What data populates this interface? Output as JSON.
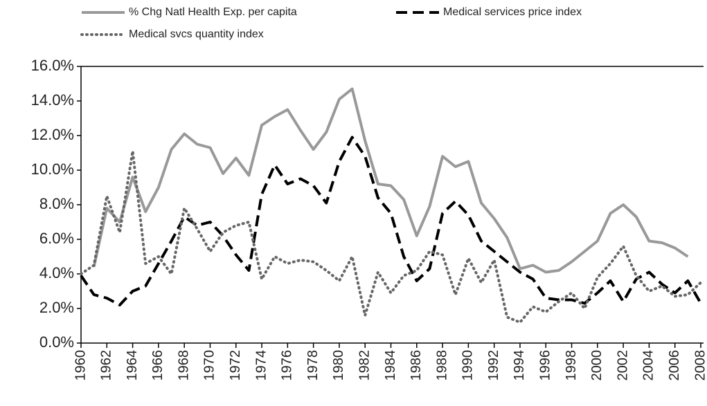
{
  "chart_data": {
    "type": "line",
    "x": [
      1960,
      1961,
      1962,
      1963,
      1964,
      1965,
      1966,
      1967,
      1968,
      1969,
      1970,
      1971,
      1972,
      1973,
      1974,
      1975,
      1976,
      1977,
      1978,
      1979,
      1980,
      1981,
      1982,
      1983,
      1984,
      1985,
      1986,
      1987,
      1988,
      1989,
      1990,
      1991,
      1992,
      1993,
      1994,
      1995,
      1996,
      1997,
      1998,
      1999,
      2000,
      2001,
      2002,
      2003,
      2004,
      2005,
      2006,
      2007,
      2008
    ],
    "xlim": [
      1960,
      2008
    ],
    "xticks": [
      1960,
      1962,
      1964,
      1966,
      1968,
      1970,
      1972,
      1974,
      1976,
      1978,
      1980,
      1982,
      1984,
      1986,
      1988,
      1990,
      1992,
      1994,
      1996,
      1998,
      2000,
      2002,
      2004,
      2006,
      2008
    ],
    "ylim": [
      0,
      16
    ],
    "yticks": [
      {
        "value": 0,
        "label": "0.0%"
      },
      {
        "value": 2,
        "label": "2.0%"
      },
      {
        "value": 4,
        "label": "4.0%"
      },
      {
        "value": 6,
        "label": "6.0%"
      },
      {
        "value": 8,
        "label": "8.0%"
      },
      {
        "value": 10,
        "label": "10.0%"
      },
      {
        "value": 12,
        "label": "12.0%"
      },
      {
        "value": 14,
        "label": "14.0%"
      },
      {
        "value": 16,
        "label": "16.0%"
      }
    ],
    "series": [
      {
        "name": "% Chg Natl Health Exp. per capita",
        "color": "#999999",
        "dash": "solid",
        "values": [
          null,
          4.4,
          7.8,
          7.0,
          9.6,
          7.6,
          9.0,
          11.2,
          12.1,
          11.5,
          11.3,
          9.8,
          10.7,
          9.7,
          12.6,
          13.1,
          13.5,
          12.3,
          11.2,
          12.2,
          14.1,
          14.7,
          11.7,
          9.2,
          9.1,
          8.3,
          6.2,
          7.9,
          10.8,
          10.2,
          10.5,
          8.1,
          7.2,
          6.1,
          4.3,
          4.5,
          4.1,
          4.2,
          4.7,
          5.3,
          5.9,
          7.5,
          8.0,
          7.3,
          5.9,
          5.8,
          5.5,
          5.0,
          null
        ]
      },
      {
        "name": "Medical services price index",
        "color": "#000000",
        "dash": "dashed",
        "values": [
          3.9,
          2.8,
          2.6,
          2.2,
          3.0,
          3.3,
          4.6,
          5.9,
          7.3,
          6.8,
          7.0,
          6.2,
          5.1,
          4.2,
          8.6,
          10.3,
          9.2,
          9.5,
          9.1,
          8.1,
          10.5,
          11.9,
          10.8,
          8.4,
          7.5,
          5.0,
          3.6,
          4.3,
          7.5,
          8.2,
          7.4,
          5.9,
          5.3,
          4.7,
          4.1,
          3.7,
          2.6,
          2.5,
          2.5,
          2.3,
          2.9,
          3.6,
          2.4,
          3.7,
          4.1,
          3.4,
          2.9,
          3.6,
          2.3
        ]
      },
      {
        "name": "Medical svcs quantity index",
        "color": "#666666",
        "dash": "dotted",
        "values": [
          4.0,
          4.5,
          8.5,
          6.4,
          11.1,
          4.6,
          5.0,
          4.0,
          7.8,
          6.6,
          5.3,
          6.4,
          6.8,
          7.0,
          3.7,
          5.0,
          4.6,
          4.8,
          4.7,
          4.2,
          3.6,
          5.0,
          1.6,
          4.1,
          2.9,
          3.9,
          4.2,
          5.3,
          5.1,
          2.8,
          4.9,
          3.5,
          4.8,
          1.5,
          1.2,
          2.1,
          1.8,
          2.4,
          2.9,
          2.0,
          3.8,
          4.6,
          5.6,
          3.9,
          3.0,
          3.3,
          2.7,
          2.8,
          3.5
        ]
      }
    ]
  }
}
